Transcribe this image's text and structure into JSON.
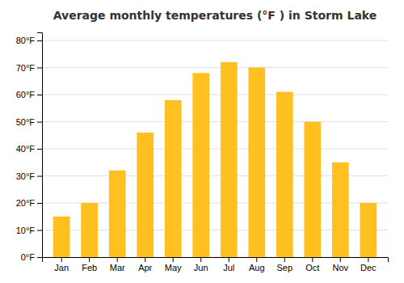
{
  "chart_data": {
    "type": "bar",
    "title": "Average monthly temperatures (°F ) in Storm Lake",
    "categories": [
      "Jan",
      "Feb",
      "Mar",
      "Apr",
      "May",
      "Jun",
      "Jul",
      "Aug",
      "Sep",
      "Oct",
      "Nov",
      "Dec"
    ],
    "values": [
      15,
      20,
      32,
      46,
      58,
      68,
      72,
      70,
      61,
      50,
      35,
      20
    ],
    "color": "#FFC020",
    "ylim": [
      0,
      83
    ],
    "yticks": [
      {
        "value": 0,
        "label": "0°F"
      },
      {
        "value": 10,
        "label": "10°F"
      },
      {
        "value": 20,
        "label": "20°F"
      },
      {
        "value": 30,
        "label": "30°F"
      },
      {
        "value": 40,
        "label": "40°F"
      },
      {
        "value": 50,
        "label": "50°F"
      },
      {
        "value": 60,
        "label": "60°F"
      },
      {
        "value": 70,
        "label": "70°F"
      },
      {
        "value": 80,
        "label": "80°F"
      }
    ],
    "grid": true
  }
}
